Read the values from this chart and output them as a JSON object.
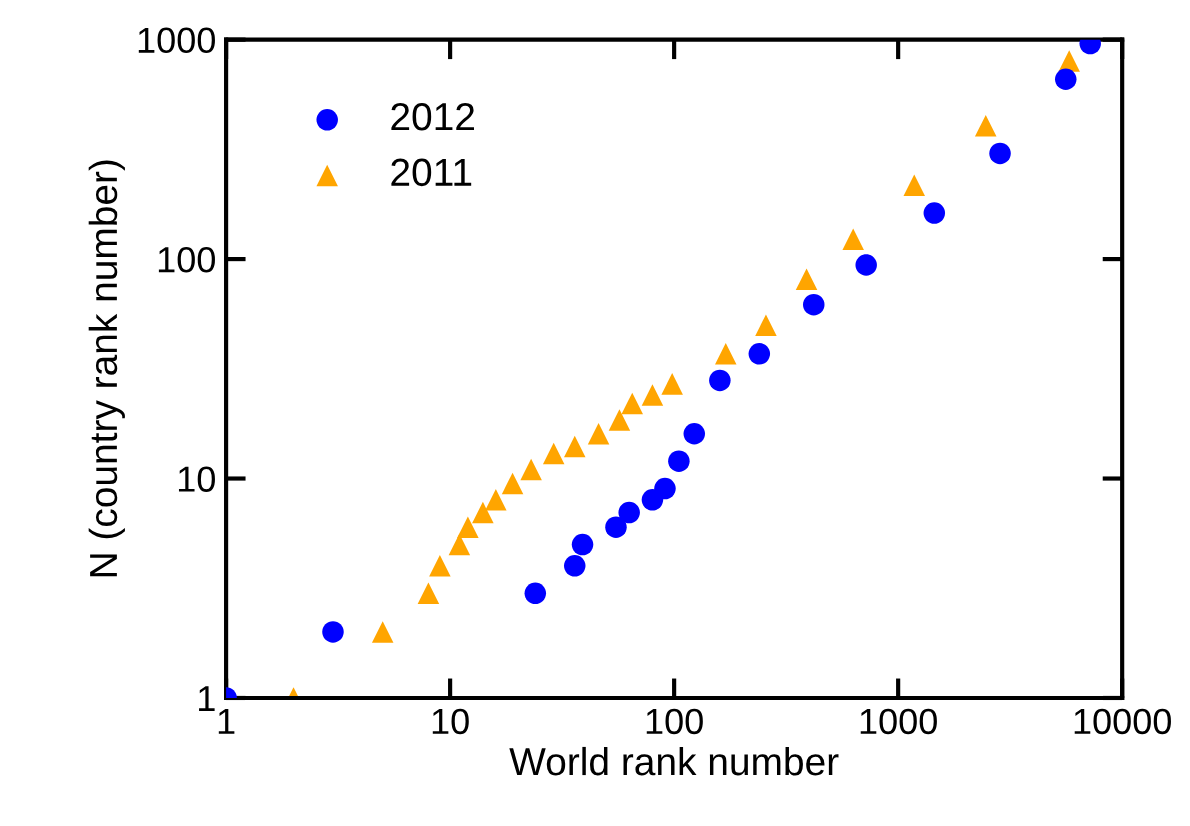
{
  "chart_data": {
    "type": "scatter",
    "xlabel": "World rank number",
    "ylabel": "N (country rank number)",
    "log": "xy",
    "xlim": [
      1,
      10000
    ],
    "xticks": [
      1,
      10,
      100,
      1000,
      10000
    ],
    "ylim": [
      1,
      1000
    ],
    "yticks": [
      1,
      10,
      100,
      1000
    ],
    "grid": false,
    "legend": "top left",
    "series": [
      {
        "name": "2012",
        "color": "#0000ff",
        "marker": "circle",
        "x": [
          1,
          3,
          24,
          36,
          39,
          55,
          63,
          80,
          91,
          105,
          123,
          160,
          240,
          420,
          720,
          1450,
          2850,
          5600,
          7200
        ],
        "values": [
          1,
          2,
          3,
          4,
          5,
          6,
          7,
          8,
          9,
          12,
          16,
          28,
          37,
          62,
          94,
          162,
          303,
          660,
          960
        ]
      },
      {
        "name": "2011",
        "color": "#ffa500",
        "marker": "triangle",
        "x": [
          2,
          5,
          8,
          9,
          11,
          12,
          14,
          16,
          19,
          23,
          29,
          36,
          46,
          57,
          65,
          80,
          98,
          170,
          257,
          390,
          630,
          1180,
          2460,
          5800
        ],
        "values": [
          1,
          2,
          3,
          4,
          5,
          6,
          7,
          8,
          9.5,
          11,
          13,
          14,
          16,
          18.5,
          22,
          24,
          27,
          37,
          50,
          81,
          123,
          217,
          405,
          800
        ]
      }
    ]
  }
}
